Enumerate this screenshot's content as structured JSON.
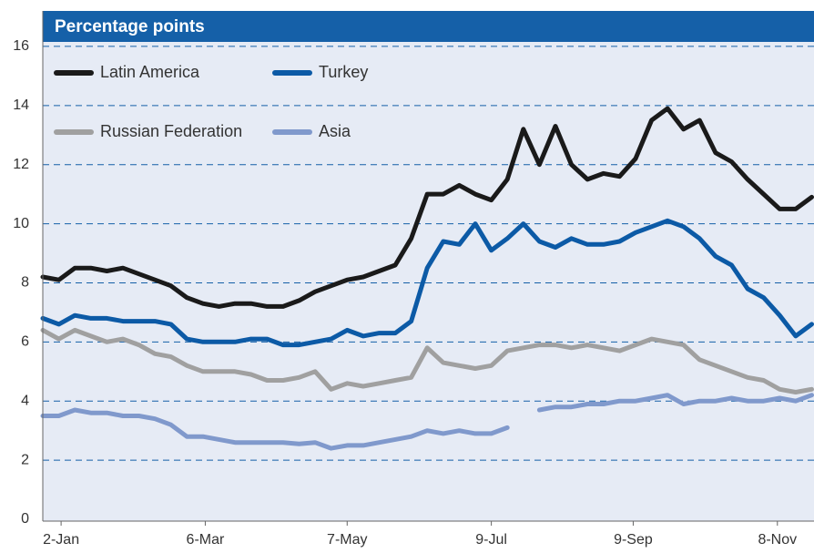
{
  "chart_data": {
    "type": "line",
    "subtitle": "Percentage points",
    "x": [
      -8,
      -1,
      6,
      13,
      20,
      27,
      34,
      41,
      48,
      55,
      62,
      69,
      76,
      83,
      90,
      97,
      104,
      111,
      118,
      125,
      132,
      139,
      146,
      153,
      160,
      167,
      174,
      181,
      188,
      195,
      202,
      209,
      216,
      223,
      230,
      237,
      244,
      251,
      258,
      265,
      272,
      279,
      286,
      293,
      300,
      307,
      314,
      321,
      328
    ],
    "xlim": [
      -8,
      329
    ],
    "xticks": [
      {
        "value": 0,
        "label": "2-Jan"
      },
      {
        "value": 63,
        "label": "6-Mar"
      },
      {
        "value": 125,
        "label": "7-May"
      },
      {
        "value": 188,
        "label": "9-Jul"
      },
      {
        "value": 250,
        "label": "9-Sep"
      },
      {
        "value": 313,
        "label": "8-Nov"
      }
    ],
    "ylim": [
      0,
      17.2
    ],
    "yticks": [
      0,
      2,
      4,
      6,
      8,
      10,
      12,
      14,
      16
    ],
    "grid": true,
    "legend": "upper left",
    "series": [
      {
        "name": "Latin America",
        "color": "#1a1a1a",
        "values": [
          8.2,
          8.1,
          8.5,
          8.5,
          8.4,
          8.5,
          8.3,
          8.1,
          7.9,
          7.5,
          7.3,
          7.2,
          7.3,
          7.3,
          7.2,
          7.2,
          7.4,
          7.7,
          7.9,
          8.1,
          8.2,
          8.4,
          8.6,
          9.5,
          11.0,
          11.0,
          11.3,
          11.0,
          10.8,
          11.5,
          13.2,
          12.0,
          13.3,
          12.0,
          11.5,
          11.7,
          11.6,
          12.2,
          13.5,
          13.9,
          13.2,
          13.5,
          12.4,
          12.1,
          11.5,
          11.0,
          10.5,
          10.5,
          10.9
        ]
      },
      {
        "name": "Turkey",
        "color": "#0c5aa6",
        "values": [
          6.8,
          6.6,
          6.9,
          6.8,
          6.8,
          6.7,
          6.7,
          6.7,
          6.6,
          6.1,
          6.0,
          6.0,
          6.0,
          6.1,
          6.1,
          5.9,
          5.9,
          6.0,
          6.1,
          6.4,
          6.2,
          6.3,
          6.3,
          6.7,
          8.5,
          9.4,
          9.3,
          10.0,
          9.1,
          9.5,
          10.0,
          9.4,
          9.2,
          9.5,
          9.3,
          9.3,
          9.4,
          9.7,
          9.9,
          10.1,
          9.9,
          9.5,
          8.9,
          8.6,
          7.8,
          7.5,
          6.9,
          6.2,
          6.6
        ]
      },
      {
        "name": "Russian Federation",
        "color": "#a0a0a0",
        "values": [
          6.4,
          6.1,
          6.4,
          6.2,
          6.0,
          6.1,
          5.9,
          5.6,
          5.5,
          5.2,
          5.0,
          5.0,
          5.0,
          4.9,
          4.7,
          4.7,
          4.8,
          5.0,
          4.4,
          4.6,
          4.5,
          4.6,
          4.7,
          4.8,
          5.8,
          5.3,
          5.2,
          5.1,
          5.2,
          5.7,
          5.8,
          5.9,
          5.9,
          5.8,
          5.9,
          5.8,
          5.7,
          5.9,
          6.1,
          6.0,
          5.9,
          5.4,
          5.2,
          5.0,
          4.8,
          4.7,
          4.4,
          4.3,
          4.4
        ]
      },
      {
        "name": "Asia",
        "color": "#8099cc",
        "values": [
          3.5,
          3.5,
          3.7,
          3.6,
          3.6,
          3.5,
          3.5,
          3.4,
          3.2,
          2.8,
          2.8,
          2.7,
          2.6,
          2.6,
          2.6,
          2.6,
          2.55,
          2.6,
          2.4,
          2.5,
          2.5,
          2.6,
          2.7,
          2.8,
          3.0,
          2.9,
          3.0,
          2.9,
          2.9,
          3.1,
          null,
          3.7,
          3.8,
          3.8,
          3.9,
          3.9,
          4.0,
          4.0,
          4.1,
          4.2,
          3.9,
          4.0,
          4.0,
          4.1,
          4.0,
          4.0,
          4.1,
          4.0,
          4.2
        ]
      }
    ]
  }
}
